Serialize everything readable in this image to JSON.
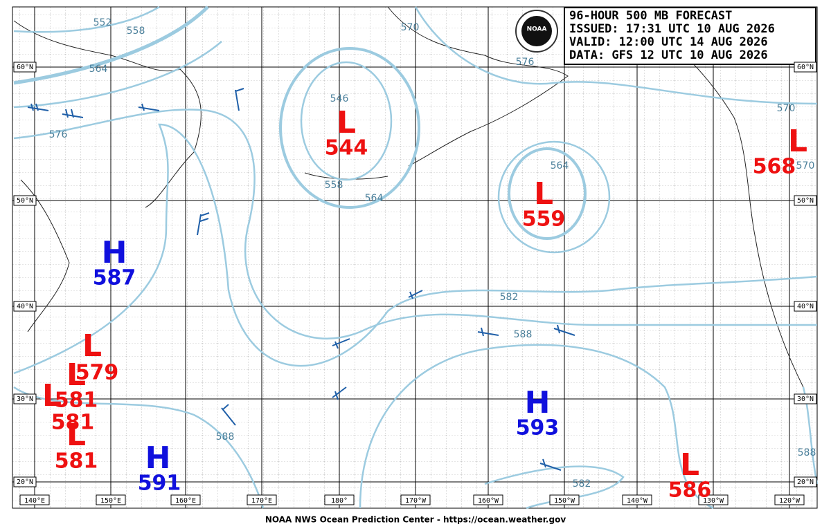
{
  "header": {
    "lines": [
      "96-HOUR 500 MB FORECAST",
      "ISSUED: 17:31 UTC 10 AUG 2026",
      "VALID:  12:00 UTC 14 AUG 2026",
      "DATA:  GFS 12 UTC 10 AUG 2026"
    ]
  },
  "footer": "NOAA NWS Ocean Prediction Center - https://ocean.weather.gov",
  "lon_labels": [
    "140°E",
    "150°E",
    "160°E",
    "170°E",
    "180°",
    "170°W",
    "160°W",
    "150°W",
    "140°W",
    "130°W",
    "120°W"
  ],
  "lat_labels": [
    "60°N",
    "50°N",
    "40°N",
    "30°N",
    "20°N"
  ],
  "centers": [
    {
      "type": "L",
      "value": 544
    },
    {
      "type": "L",
      "value": 559
    },
    {
      "type": "L",
      "value": 568
    },
    {
      "type": "H",
      "value": 587
    },
    {
      "type": "H",
      "value": 593
    },
    {
      "type": "H",
      "value": 591
    },
    {
      "type": "L",
      "value": 586
    },
    {
      "type": "L",
      "value": 579
    },
    {
      "type": "L",
      "value": 581
    },
    {
      "type": "L",
      "value": 581
    },
    {
      "type": "L",
      "value": 581
    }
  ],
  "contour_labels": [
    552,
    558,
    564,
    576,
    546,
    558,
    564,
    570,
    576,
    564,
    570,
    570,
    582,
    588,
    588,
    582,
    588
  ]
}
